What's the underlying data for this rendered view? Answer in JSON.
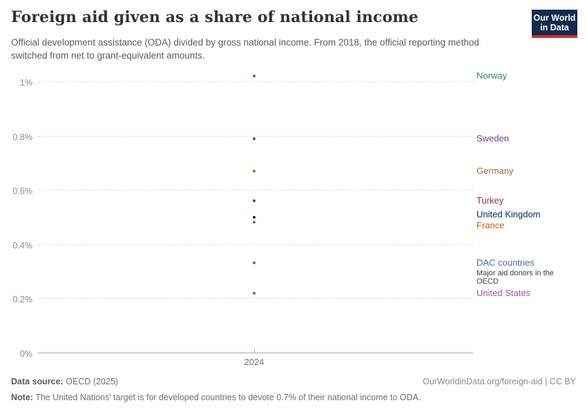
{
  "header": {
    "title": "Foreign aid given as a share of national income",
    "subtitle": "Official development assistance (ODA) divided by gross national income. From 2018, the official reporting method switched from net to grant-equivalent amounts.",
    "logo": {
      "line1": "Our World",
      "line2": "in Data",
      "bg_color": "#122B4E",
      "accent_color": "#CE3231"
    }
  },
  "chart_data": {
    "type": "scatter",
    "x": [
      2024
    ],
    "x_tick_label": "2024",
    "xlabel": "",
    "ylabel": "",
    "ylim": [
      0,
      1.05
    ],
    "grid": "dashed horizontal gridlines, solid zero axis",
    "legend_position": "labels at right of plot",
    "y_ticks": [
      {
        "value": 0,
        "label": "0%"
      },
      {
        "value": 0.2,
        "label": "0.2%"
      },
      {
        "value": 0.4,
        "label": "0.4%"
      },
      {
        "value": 0.6,
        "label": "0.6%"
      },
      {
        "value": 0.8,
        "label": "0.8%"
      },
      {
        "value": 1.0,
        "label": "1%"
      }
    ],
    "series": [
      {
        "name": "Norway",
        "value": 1.02,
        "color": "#2C8465"
      },
      {
        "name": "Sweden",
        "value": 0.79,
        "color": "#6D3E91"
      },
      {
        "name": "Germany",
        "value": 0.67,
        "color": "#996D39"
      },
      {
        "name": "Turkey",
        "value": 0.56,
        "color": "#883039"
      },
      {
        "name": "United Kingdom",
        "value": 0.5,
        "color": "#00295B",
        "label_dy": -4
      },
      {
        "name": "France",
        "value": 0.48,
        "color": "#BE5915",
        "label_dy": 5
      },
      {
        "name": "DAC countries",
        "value": 0.33,
        "color": "#4C6A9C",
        "annotation": "Major aid donors in the OECD"
      },
      {
        "name": "United States",
        "value": 0.22,
        "color": "#A2559C"
      }
    ]
  },
  "footer": {
    "source_label": "Data source:",
    "source_value": "OECD (2025)",
    "license": "OurWorldinData.org/foreign-aid | CC BY",
    "note_label": "Note:",
    "note_value": "The United Nations' target is for developed countries to devote 0.7% of their national income to ODA."
  }
}
